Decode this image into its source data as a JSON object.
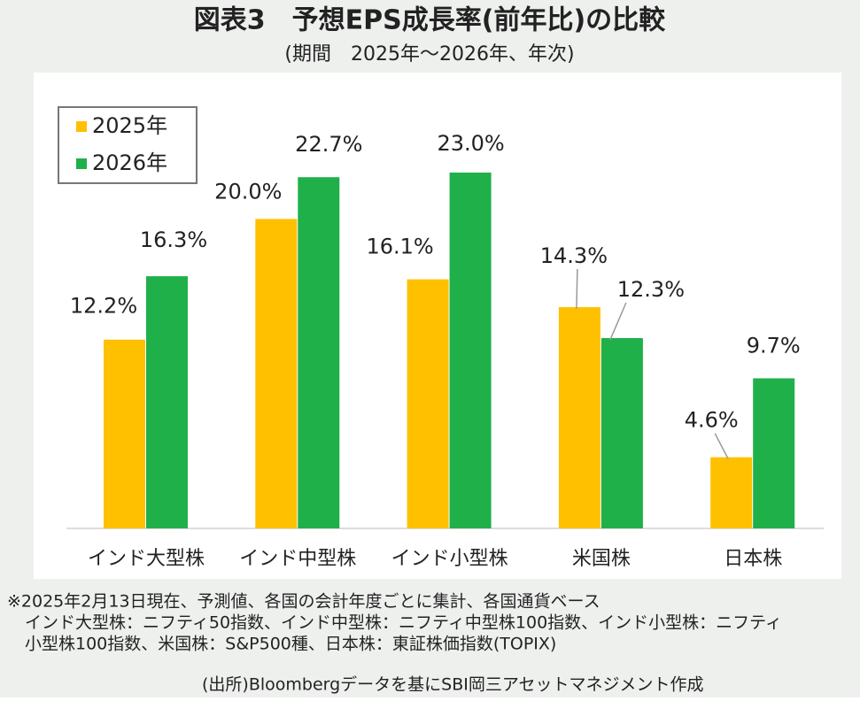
{
  "chart_data": {
    "type": "bar",
    "title": "図表3　予想EPS成長率(前年比)の比較",
    "subtitle": "(期間　2025年～2026年、年次)",
    "categories": [
      "インド大型株",
      "インド中型株",
      "インド小型株",
      "米国株",
      "日本株"
    ],
    "series": [
      {
        "name": "2025年",
        "color": "#ffc000",
        "values": [
          12.2,
          20.0,
          16.1,
          14.3,
          4.6
        ],
        "value_labels": [
          "12.2%",
          "20.0%",
          "16.1%",
          "14.3%",
          "4.6%"
        ]
      },
      {
        "name": "2026年",
        "color": "#1fb04a",
        "values": [
          16.3,
          22.7,
          23.0,
          12.3,
          9.7
        ],
        "value_labels": [
          "16.3%",
          "22.7%",
          "23.0%",
          "12.3%",
          "9.7%"
        ]
      }
    ],
    "notes": [
      "※2025年2月13日現在、予測値、各国の会計年度ごとに集計、各国通貨ベース",
      "インド大型株：ニフティ50指数、インド中型株：ニフティ中型株100指数、インド小型株：ニフティ",
      "小型株100指数、米国株：S&P500種、日本株：東証株価指数(TOPIX)"
    ],
    "source": "(出所)Bloombergデータを基にSBI岡三アセットマネジメント作成"
  }
}
